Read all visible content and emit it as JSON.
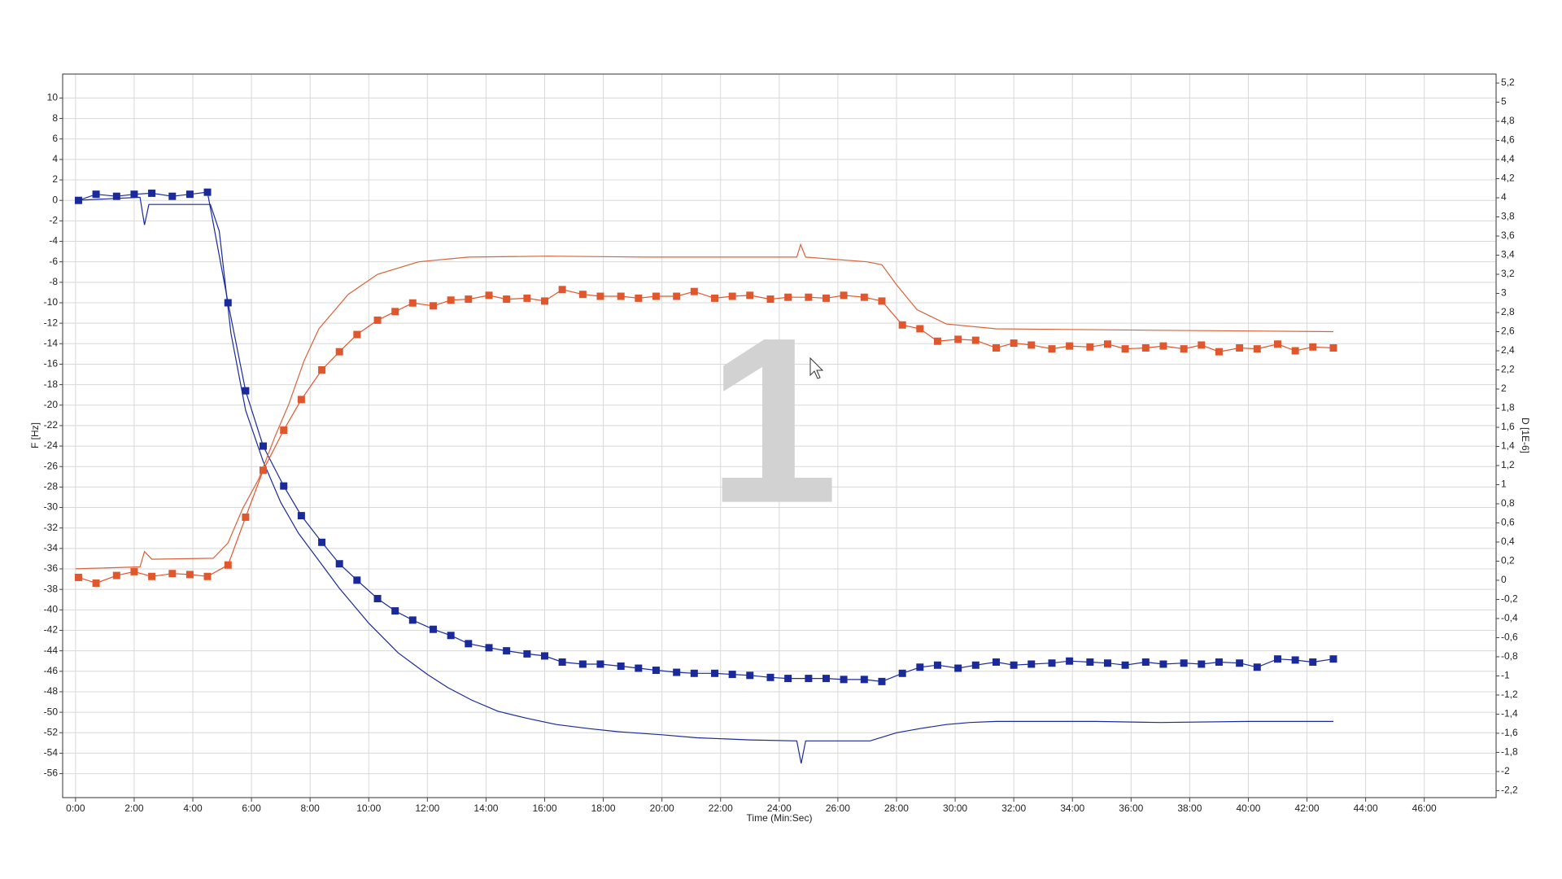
{
  "chart_data": {
    "type": "line",
    "xlabel": "Time (Min:Sec)",
    "ylabel": "F [Hz]",
    "y2label": "D [1E-6]",
    "annotations": [
      "1"
    ],
    "grid": true,
    "xlim": [
      -0.44,
      48.45
    ],
    "xticks": [
      {
        "value": 0,
        "label": "0:00"
      },
      {
        "value": 2,
        "label": "2:00"
      },
      {
        "value": 4,
        "label": "4:00"
      },
      {
        "value": 6,
        "label": "6:00"
      },
      {
        "value": 8,
        "label": "8:00"
      },
      {
        "value": 10,
        "label": "10:00"
      },
      {
        "value": 12,
        "label": "12:00"
      },
      {
        "value": 14,
        "label": "14:00"
      },
      {
        "value": 16,
        "label": "16:00"
      },
      {
        "value": 18,
        "label": "18:00"
      },
      {
        "value": 20,
        "label": "20:00"
      },
      {
        "value": 22,
        "label": "22:00"
      },
      {
        "value": 24,
        "label": "24:00"
      },
      {
        "value": 26,
        "label": "26:00"
      },
      {
        "value": 28,
        "label": "28:00"
      },
      {
        "value": 30,
        "label": "30:00"
      },
      {
        "value": 32,
        "label": "32:00"
      },
      {
        "value": 34,
        "label": "34:00"
      },
      {
        "value": 36,
        "label": "36:00"
      },
      {
        "value": 38,
        "label": "38:00"
      },
      {
        "value": 40,
        "label": "40:00"
      },
      {
        "value": 42,
        "label": "42:00"
      },
      {
        "value": 44,
        "label": "44:00"
      },
      {
        "value": 46,
        "label": "46:00"
      }
    ],
    "ylim": [
      -58.34,
      12.34
    ],
    "yticks": [
      10,
      8,
      6,
      4,
      2,
      0,
      -2,
      -4,
      -6,
      -8,
      -10,
      -12,
      -14,
      -16,
      -18,
      -20,
      -22,
      -24,
      -26,
      -28,
      -30,
      -32,
      -34,
      -36,
      -38,
      -40,
      -42,
      -44,
      -46,
      -48,
      -50,
      -52,
      -54,
      -56
    ],
    "y2lim": [
      -2.273,
      5.294
    ],
    "y2ticks": [
      {
        "value": 5.2,
        "label": "5,2"
      },
      5,
      {
        "value": 4.8,
        "label": "4,8"
      },
      {
        "value": 4.6,
        "label": "4,6"
      },
      {
        "value": 4.4,
        "label": "4,4"
      },
      {
        "value": 4.2,
        "label": "4,2"
      },
      4,
      {
        "value": 3.8,
        "label": "3,8"
      },
      {
        "value": 3.6,
        "label": "3,6"
      },
      {
        "value": 3.4,
        "label": "3,4"
      },
      {
        "value": 3.2,
        "label": "3,2"
      },
      3,
      {
        "value": 2.8,
        "label": "2,8"
      },
      {
        "value": 2.6,
        "label": "2,6"
      },
      {
        "value": 2.4,
        "label": "2,4"
      },
      {
        "value": 2.2,
        "label": "2,2"
      },
      2,
      {
        "value": 1.8,
        "label": "1,8"
      },
      {
        "value": 1.6,
        "label": "1,6"
      },
      {
        "value": 1.4,
        "label": "1,4"
      },
      {
        "value": 1.2,
        "label": "1,2"
      },
      1,
      {
        "value": 0.8,
        "label": "0,8"
      },
      {
        "value": 0.6,
        "label": "0,6"
      },
      {
        "value": 0.4,
        "label": "0,4"
      },
      {
        "value": 0.2,
        "label": "0,2"
      },
      0,
      {
        "value": -0.2,
        "label": "-0,2"
      },
      {
        "value": -0.4,
        "label": "-0,4"
      },
      {
        "value": -0.6,
        "label": "-0,6"
      },
      {
        "value": -0.8,
        "label": "-0,8"
      },
      -1,
      {
        "value": -1.2,
        "label": "-1,2"
      },
      {
        "value": -1.4,
        "label": "-1,4"
      },
      {
        "value": -1.6,
        "label": "-1,6"
      },
      {
        "value": -1.8,
        "label": "-1,8"
      },
      -2,
      {
        "value": -2.2,
        "label": "-2,2"
      }
    ],
    "series": [
      {
        "color": "#1a2a9a",
        "axis": "y",
        "marker": "square",
        "x": [
          0.1,
          0.7,
          1.4,
          2.0,
          2.6,
          3.3,
          3.9,
          4.5,
          5.2,
          5.8,
          6.4,
          7.1,
          7.7,
          8.4,
          9.0,
          9.6,
          10.3,
          10.9,
          11.5,
          12.2,
          12.8,
          13.4,
          14.1,
          14.7,
          15.4,
          16.0,
          16.6,
          17.3,
          17.9,
          18.6,
          19.2,
          19.8,
          20.5,
          21.1,
          21.8,
          22.4,
          23.0,
          23.7,
          24.3,
          25.0,
          25.6,
          26.2,
          26.9,
          27.5,
          28.2,
          28.8,
          29.4,
          30.1,
          30.7,
          31.4,
          32.0,
          32.6,
          33.3,
          33.9,
          34.6,
          35.2,
          35.8,
          36.5,
          37.1,
          37.8,
          38.4,
          39.0,
          39.7,
          40.3,
          41.0,
          41.6,
          42.2,
          42.9
        ],
        "values": [
          0,
          0.6,
          0.4,
          0.6,
          0.7,
          0.4,
          0.6,
          0.8,
          -10,
          -18.6,
          -24,
          -27.9,
          -30.8,
          -33.4,
          -35.5,
          -37.1,
          -38.9,
          -40.1,
          -41,
          -41.9,
          -42.5,
          -43.3,
          -43.7,
          -44,
          -44.3,
          -44.5,
          -45.1,
          -45.3,
          -45.3,
          -45.5,
          -45.7,
          -45.9,
          -46.1,
          -46.2,
          -46.2,
          -46.3,
          -46.4,
          -46.6,
          -46.7,
          -46.7,
          -46.7,
          -46.8,
          -46.8,
          -47,
          -46.2,
          -45.6,
          -45.4,
          -45.7,
          -45.4,
          -45.1,
          -45.4,
          -45.3,
          -45.2,
          -45.0,
          -45.1,
          -45.2,
          -45.4,
          -45.1,
          -45.3,
          -45.2,
          -45.3,
          -45.1,
          -45.2,
          -45.6,
          -44.8,
          -44.9,
          -45.1,
          -44.8
        ]
      },
      {
        "color": "#1a2a9a",
        "axis": "y",
        "x": [
          0,
          2.2,
          2.35,
          2.5,
          4.6,
          4.9,
          5.3,
          5.8,
          6.4,
          7.0,
          7.6,
          8.3,
          9.0,
          10.0,
          11.0,
          12.0,
          12.7,
          13.5,
          14.4,
          15.4,
          16.4,
          17.5,
          18.5,
          20.0,
          21.2,
          23.0,
          24.6,
          24.75,
          24.9,
          26.0,
          27.1,
          28.0,
          28.8,
          29.7,
          30.5,
          31.4,
          33.0,
          34.8,
          37.0,
          40.0,
          42.9
        ],
        "values": [
          0,
          0.3,
          -2.4,
          -0.4,
          -0.4,
          -3,
          -13,
          -20.5,
          -25.5,
          -29.5,
          -32.5,
          -35.2,
          -37.9,
          -41.3,
          -44.2,
          -46.3,
          -47.6,
          -48.8,
          -49.9,
          -50.6,
          -51.2,
          -51.6,
          -51.9,
          -52.2,
          -52.5,
          -52.7,
          -52.8,
          -55.0,
          -52.8,
          -52.8,
          -52.8,
          -52.0,
          -51.6,
          -51.2,
          -51.0,
          -50.9,
          -50.9,
          -50.9,
          -51.0,
          -50.9,
          -50.9
        ]
      },
      {
        "color": "#e0572e",
        "axis": "y2",
        "marker": "square",
        "x": [
          0.1,
          0.7,
          1.4,
          2.0,
          2.6,
          3.3,
          3.9,
          4.5,
          5.2,
          5.8,
          6.4,
          7.1,
          7.7,
          8.4,
          9.0,
          9.6,
          10.3,
          10.9,
          11.5,
          12.2,
          12.8,
          13.4,
          14.1,
          14.7,
          15.4,
          16.0,
          16.6,
          17.3,
          17.9,
          18.6,
          19.2,
          19.8,
          20.5,
          21.1,
          21.8,
          22.4,
          23.0,
          23.7,
          24.3,
          25.0,
          25.6,
          26.2,
          26.9,
          27.5,
          28.2,
          28.8,
          29.4,
          30.1,
          30.7,
          31.4,
          32.0,
          32.6,
          33.3,
          33.9,
          34.6,
          35.2,
          35.8,
          36.5,
          37.1,
          37.8,
          38.4,
          39.0,
          39.7,
          40.3,
          41.0,
          41.6,
          42.2,
          42.9
        ],
        "values": [
          0.03,
          -0.03,
          0.05,
          0.09,
          0.04,
          0.07,
          0.06,
          0.04,
          0.16,
          0.66,
          1.15,
          1.57,
          1.89,
          2.2,
          2.39,
          2.57,
          2.72,
          2.81,
          2.9,
          2.87,
          2.93,
          2.94,
          2.98,
          2.94,
          2.95,
          2.92,
          3.04,
          2.99,
          2.97,
          2.97,
          2.95,
          2.97,
          2.97,
          3.02,
          2.95,
          2.97,
          2.98,
          2.94,
          2.96,
          2.96,
          2.95,
          2.98,
          2.96,
          2.92,
          2.67,
          2.63,
          2.5,
          2.52,
          2.51,
          2.43,
          2.48,
          2.46,
          2.42,
          2.45,
          2.44,
          2.47,
          2.42,
          2.43,
          2.45,
          2.42,
          2.46,
          2.39,
          2.43,
          2.42,
          2.47,
          2.4,
          2.44,
          2.43
        ]
      },
      {
        "color": "#d9623a",
        "axis": "y2",
        "x": [
          0,
          2.2,
          2.35,
          2.6,
          4.7,
          5.2,
          5.7,
          6.25,
          6.8,
          7.27,
          7.8,
          8.3,
          9.3,
          10.3,
          11.7,
          13.4,
          16.1,
          19.5,
          24.6,
          24.73,
          24.9,
          27.0,
          27.5,
          28.0,
          28.7,
          29.7,
          31.4,
          35.0,
          42.9
        ],
        "values": [
          0.12,
          0.14,
          0.3,
          0.22,
          0.23,
          0.39,
          0.75,
          1.06,
          1.5,
          1.84,
          2.3,
          2.63,
          2.99,
          3.2,
          3.33,
          3.38,
          3.39,
          3.38,
          3.38,
          3.51,
          3.38,
          3.33,
          3.3,
          3.09,
          2.83,
          2.68,
          2.63,
          2.62,
          2.6
        ]
      }
    ]
  }
}
